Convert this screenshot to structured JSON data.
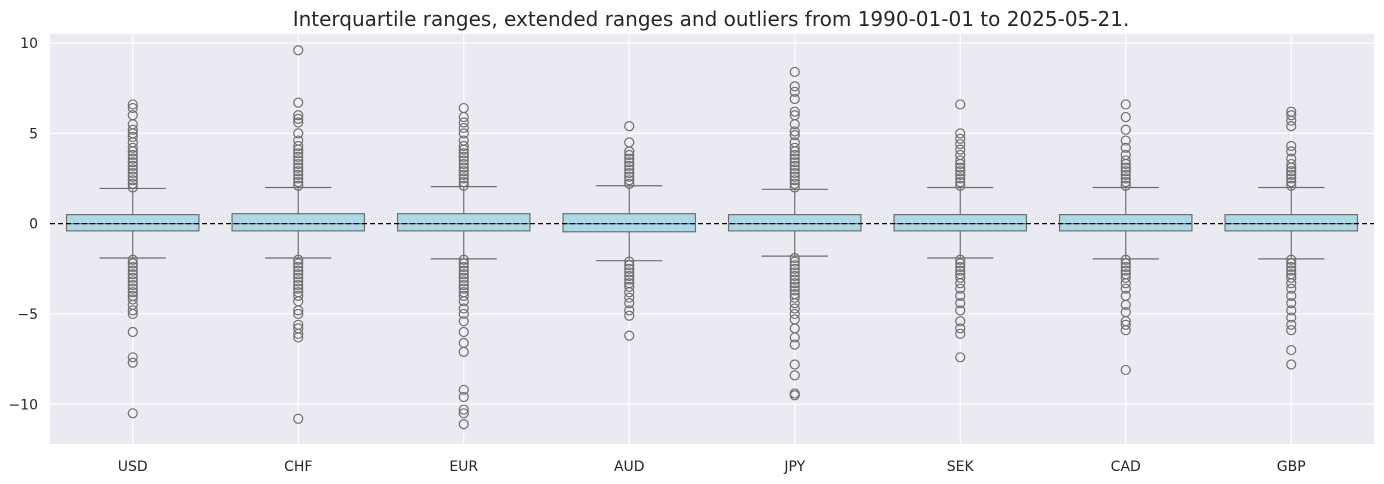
{
  "chart_data": {
    "type": "box",
    "title": "Interquartile ranges, extended ranges and outliers from 1990-01-01 to 2025-05-21.",
    "xlabel": "",
    "ylabel": "",
    "ylim": [
      -12.2,
      10.5
    ],
    "yticks": [
      {
        "value": 10,
        "label": "10"
      },
      {
        "value": 5,
        "label": "5"
      },
      {
        "value": 0,
        "label": "0"
      },
      {
        "value": -5,
        "label": "−5"
      },
      {
        "value": -10,
        "label": "−10"
      }
    ],
    "grid": true,
    "reference_line": {
      "y": 0,
      "style": "dashed",
      "color": "#000000"
    },
    "colors": {
      "background": "#eaeaf2",
      "grid": "#ffffff",
      "box_fill": "#add8e6",
      "box_edge": "#6e6e6e",
      "outlier_edge": "#6e6e6e"
    },
    "categories": [
      "USD",
      "CHF",
      "EUR",
      "AUD",
      "JPY",
      "SEK",
      "CAD",
      "GBP"
    ],
    "boxes": [
      {
        "category": "USD",
        "q1": -0.4,
        "median": 0.0,
        "q3": 0.5,
        "whisker_low": -1.9,
        "whisker_high": 1.95,
        "outliers_high": [
          2.0,
          2.2,
          2.4,
          2.6,
          2.8,
          3.0,
          3.2,
          3.4,
          3.6,
          3.8,
          4.0,
          4.2,
          4.5,
          4.8,
          5.0,
          5.2,
          5.5,
          6.0,
          6.4,
          6.6
        ],
        "outliers_low": [
          -2.0,
          -2.2,
          -2.4,
          -2.6,
          -2.8,
          -3.0,
          -3.2,
          -3.4,
          -3.6,
          -3.8,
          -4.0,
          -4.2,
          -4.5,
          -4.8,
          -5.0,
          -6.0,
          -7.4,
          -7.7,
          -10.5
        ]
      },
      {
        "category": "CHF",
        "q1": -0.4,
        "median": 0.0,
        "q3": 0.55,
        "whisker_low": -1.9,
        "whisker_high": 2.0,
        "outliers_high": [
          2.1,
          2.3,
          2.5,
          2.7,
          2.9,
          3.1,
          3.3,
          3.5,
          3.7,
          3.9,
          4.1,
          4.3,
          4.6,
          5.0,
          5.6,
          5.8,
          6.0,
          6.7,
          9.6
        ],
        "outliers_low": [
          -2.0,
          -2.2,
          -2.4,
          -2.6,
          -2.8,
          -3.0,
          -3.2,
          -3.4,
          -3.6,
          -3.8,
          -4.0,
          -4.3,
          -4.8,
          -5.0,
          -5.6,
          -5.8,
          -6.1,
          -6.3,
          -10.8
        ]
      },
      {
        "category": "EUR",
        "q1": -0.4,
        "median": 0.0,
        "q3": 0.55,
        "whisker_low": -1.95,
        "whisker_high": 2.05,
        "outliers_high": [
          2.1,
          2.3,
          2.5,
          2.7,
          2.9,
          3.1,
          3.3,
          3.5,
          3.7,
          3.9,
          4.1,
          4.3,
          4.6,
          5.0,
          5.3,
          5.6,
          5.9,
          6.4
        ],
        "outliers_low": [
          -2.0,
          -2.2,
          -2.4,
          -2.6,
          -2.8,
          -3.0,
          -3.2,
          -3.4,
          -3.6,
          -3.8,
          -4.0,
          -4.3,
          -4.7,
          -5.0,
          -5.4,
          -6.0,
          -6.6,
          -7.1,
          -9.2,
          -9.6,
          -10.3,
          -10.5,
          -11.1
        ]
      },
      {
        "category": "AUD",
        "q1": -0.45,
        "median": 0.0,
        "q3": 0.55,
        "whisker_low": -2.05,
        "whisker_high": 2.1,
        "outliers_high": [
          2.2,
          2.4,
          2.6,
          2.8,
          3.0,
          3.2,
          3.4,
          3.6,
          3.8,
          4.0,
          4.5,
          5.4
        ],
        "outliers_low": [
          -2.1,
          -2.3,
          -2.5,
          -2.7,
          -2.9,
          -3.1,
          -3.3,
          -3.5,
          -3.8,
          -4.1,
          -4.4,
          -4.8,
          -5.1,
          -6.2
        ]
      },
      {
        "category": "JPY",
        "q1": -0.4,
        "median": 0.0,
        "q3": 0.5,
        "whisker_low": -1.8,
        "whisker_high": 1.9,
        "outliers_high": [
          2.0,
          2.2,
          2.4,
          2.6,
          2.8,
          3.0,
          3.2,
          3.4,
          3.6,
          3.8,
          4.0,
          4.2,
          4.5,
          4.9,
          5.1,
          5.5,
          6.0,
          6.2,
          6.9,
          7.3,
          7.6,
          8.4
        ],
        "outliers_low": [
          -1.9,
          -2.1,
          -2.3,
          -2.5,
          -2.7,
          -2.9,
          -3.1,
          -3.3,
          -3.5,
          -3.7,
          -3.9,
          -4.1,
          -4.4,
          -4.7,
          -5.0,
          -5.3,
          -5.8,
          -6.3,
          -6.7,
          -7.8,
          -8.4,
          -9.4,
          -9.5
        ]
      },
      {
        "category": "SEK",
        "q1": -0.4,
        "median": 0.0,
        "q3": 0.5,
        "whisker_low": -1.9,
        "whisker_high": 2.0,
        "outliers_high": [
          2.1,
          2.3,
          2.5,
          2.7,
          2.9,
          3.1,
          3.3,
          3.5,
          3.8,
          4.1,
          4.4,
          4.7,
          5.0,
          6.6
        ],
        "outliers_low": [
          -2.0,
          -2.2,
          -2.4,
          -2.6,
          -2.8,
          -3.0,
          -3.3,
          -3.6,
          -4.0,
          -4.4,
          -4.8,
          -5.4,
          -5.8,
          -6.1,
          -7.4
        ]
      },
      {
        "category": "CAD",
        "q1": -0.4,
        "median": 0.0,
        "q3": 0.5,
        "whisker_low": -1.95,
        "whisker_high": 2.0,
        "outliers_high": [
          2.1,
          2.3,
          2.5,
          2.7,
          2.9,
          3.1,
          3.3,
          3.5,
          3.8,
          4.2,
          4.6,
          5.2,
          5.9,
          6.6
        ],
        "outliers_low": [
          -2.0,
          -2.2,
          -2.4,
          -2.6,
          -2.8,
          -3.0,
          -3.3,
          -3.6,
          -4.0,
          -4.5,
          -4.9,
          -5.4,
          -5.6,
          -5.9,
          -8.1
        ]
      },
      {
        "category": "GBP",
        "q1": -0.4,
        "median": 0.0,
        "q3": 0.5,
        "whisker_low": -1.95,
        "whisker_high": 2.0,
        "outliers_high": [
          2.1,
          2.3,
          2.5,
          2.7,
          2.9,
          3.1,
          3.3,
          3.6,
          4.0,
          4.3,
          5.4,
          5.7,
          6.0,
          6.2
        ],
        "outliers_low": [
          -2.0,
          -2.2,
          -2.4,
          -2.6,
          -2.8,
          -3.0,
          -3.3,
          -3.6,
          -4.0,
          -4.4,
          -4.8,
          -5.2,
          -5.6,
          -5.9,
          -7.0,
          -7.8
        ]
      }
    ]
  }
}
